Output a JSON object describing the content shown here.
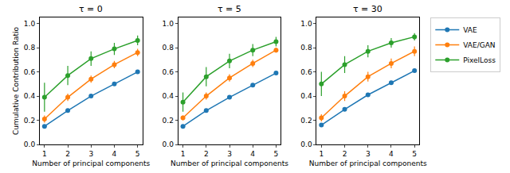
{
  "chart_data": [
    {
      "type": "line",
      "title": "τ = 0",
      "xlabel": "Number of principal components",
      "ylabel": "Cumulative Contribution Ratio",
      "x": [
        1,
        2,
        3,
        4,
        5
      ],
      "xlim": [
        0.8,
        5.2
      ],
      "xticks": [
        1,
        2,
        3,
        4,
        5
      ],
      "ylim": [
        0,
        1.05
      ],
      "yticks": [
        {
          "value": 0,
          "label": "0.0"
        },
        0.2,
        0.4,
        0.6,
        0.8,
        {
          "value": 1,
          "label": "1.0"
        }
      ],
      "marker": "circle",
      "series": [
        {
          "name": "VAE",
          "color": "#1f77b4",
          "values": [
            0.15,
            0.28,
            0.4,
            0.5,
            0.6
          ],
          "errors": [
            0.005,
            0.005,
            0.005,
            0.005,
            0.005
          ]
        },
        {
          "name": "VAE/GAN",
          "color": "#ff7f0e",
          "values": [
            0.21,
            0.39,
            0.54,
            0.66,
            0.76
          ],
          "errors": [
            0.03,
            0.03,
            0.03,
            0.03,
            0.03
          ]
        },
        {
          "name": "PixelLoss",
          "color": "#2ca02c",
          "values": [
            0.39,
            0.57,
            0.71,
            0.79,
            0.86
          ],
          "errors": [
            0.12,
            0.08,
            0.06,
            0.05,
            0.04
          ]
        }
      ]
    },
    {
      "type": "line",
      "title": "τ = 5",
      "xlabel": "Number of principal components",
      "x": [
        1,
        2,
        3,
        4,
        5
      ],
      "xlim": [
        0.8,
        5.2
      ],
      "xticks": [
        1,
        2,
        3,
        4,
        5
      ],
      "ylim": [
        0,
        1.05
      ],
      "yticks": [
        {
          "value": 0,
          "label": "0.0"
        },
        0.2,
        0.4,
        0.6,
        0.8,
        {
          "value": 1,
          "label": "1.0"
        }
      ],
      "marker": "circle",
      "series": [
        {
          "name": "VAE",
          "color": "#1f77b4",
          "values": [
            0.15,
            0.28,
            0.39,
            0.49,
            0.59
          ],
          "errors": [
            0.005,
            0.005,
            0.005,
            0.005,
            0.005
          ]
        },
        {
          "name": "VAE/GAN",
          "color": "#ff7f0e",
          "values": [
            0.22,
            0.4,
            0.55,
            0.67,
            0.78
          ],
          "errors": [
            0.02,
            0.03,
            0.03,
            0.03,
            0.02
          ]
        },
        {
          "name": "PixelLoss",
          "color": "#2ca02c",
          "values": [
            0.35,
            0.56,
            0.69,
            0.78,
            0.85
          ],
          "errors": [
            0.08,
            0.08,
            0.06,
            0.05,
            0.04
          ]
        }
      ]
    },
    {
      "type": "line",
      "title": "τ = 30",
      "xlabel": "Number of principal components",
      "x": [
        1,
        2,
        3,
        4,
        5
      ],
      "xlim": [
        0.8,
        5.2
      ],
      "xticks": [
        1,
        2,
        3,
        4,
        5
      ],
      "ylim": [
        0,
        1.05
      ],
      "yticks": [
        {
          "value": 0,
          "label": "0.0"
        },
        0.2,
        0.4,
        0.6,
        0.8,
        {
          "value": 1,
          "label": "1.0"
        }
      ],
      "marker": "circle",
      "legend": "right",
      "series": [
        {
          "name": "VAE",
          "color": "#1f77b4",
          "values": [
            0.16,
            0.29,
            0.41,
            0.51,
            0.61
          ],
          "errors": [
            0.005,
            0.005,
            0.005,
            0.005,
            0.005
          ]
        },
        {
          "name": "VAE/GAN",
          "color": "#ff7f0e",
          "values": [
            0.22,
            0.4,
            0.56,
            0.67,
            0.77
          ],
          "errors": [
            0.03,
            0.04,
            0.04,
            0.04,
            0.04
          ]
        },
        {
          "name": "PixelLoss",
          "color": "#2ca02c",
          "values": [
            0.5,
            0.66,
            0.77,
            0.84,
            0.89
          ],
          "errors": [
            0.1,
            0.07,
            0.05,
            0.04,
            0.03
          ]
        }
      ]
    }
  ]
}
